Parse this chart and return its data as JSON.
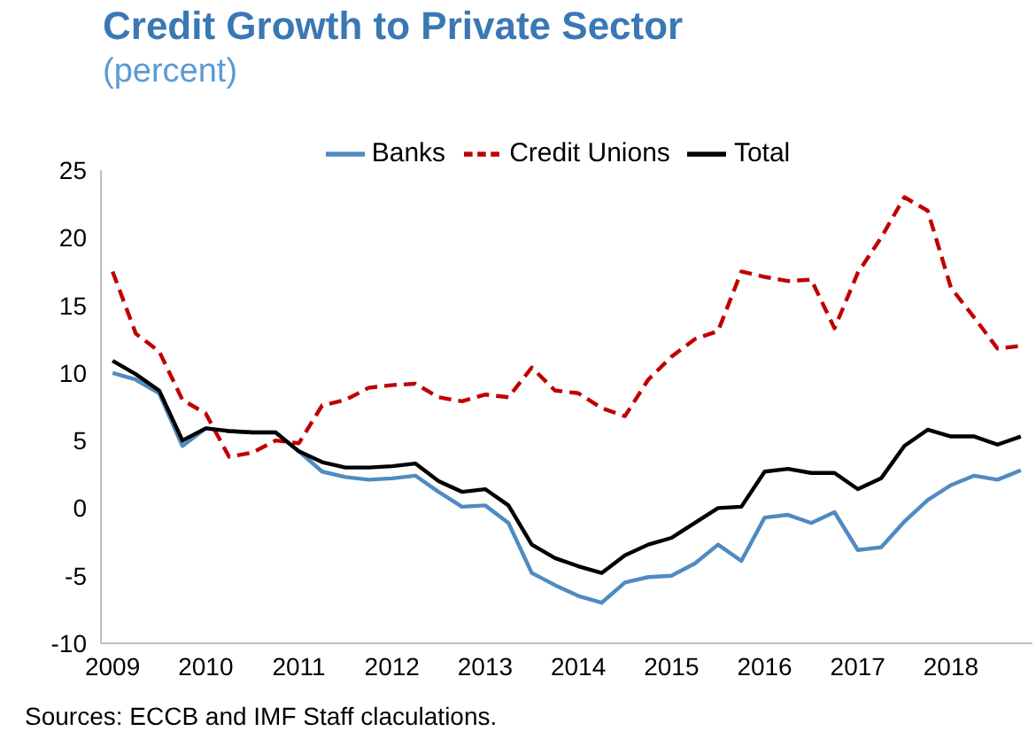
{
  "chart_data": {
    "type": "line",
    "title": "Credit Growth to Private Sector",
    "subtitle": "(percent)",
    "annotations": [
      "Sources: ECCB and IMF Staff claculations."
    ],
    "x": [
      2009,
      2009.25,
      2009.5,
      2009.75,
      2010,
      2010.25,
      2010.5,
      2010.75,
      2011,
      2011.25,
      2011.5,
      2011.75,
      2012,
      2012.25,
      2012.5,
      2012.75,
      2013,
      2013.25,
      2013.5,
      2013.75,
      2014,
      2014.25,
      2014.5,
      2014.75,
      2015,
      2015.25,
      2015.5,
      2015.75,
      2016,
      2016.25,
      2016.5,
      2016.75,
      2017,
      2017.25,
      2017.5,
      2017.75,
      2018,
      2018.25,
      2018.5,
      2018.75
    ],
    "series": [
      {
        "name": "Banks",
        "color": "#4f8bc0",
        "line_style": "solid",
        "values": [
          10.0,
          9.5,
          8.5,
          4.6,
          5.9,
          5.7,
          5.6,
          5.6,
          4.2,
          2.7,
          2.3,
          2.1,
          2.2,
          2.4,
          1.2,
          0.1,
          0.2,
          -1.1,
          -4.8,
          -5.7,
          -6.5,
          -7.0,
          -5.5,
          -5.1,
          -5.0,
          -4.1,
          -2.7,
          -3.9,
          -0.7,
          -0.5,
          -1.1,
          -0.3,
          -3.1,
          -2.9,
          -1.0,
          0.6,
          1.7,
          2.4,
          2.1,
          2.8
        ]
      },
      {
        "name": "Credit Unions",
        "color": "#c00000",
        "line_style": "dashed",
        "values": [
          17.5,
          12.9,
          11.6,
          8.0,
          7.0,
          3.8,
          4.1,
          5.0,
          4.8,
          7.6,
          8.0,
          8.9,
          9.1,
          9.2,
          8.2,
          7.9,
          8.4,
          8.2,
          10.4,
          8.7,
          8.5,
          7.4,
          6.8,
          9.5,
          11.2,
          12.5,
          13.1,
          17.5,
          17.1,
          16.8,
          16.9,
          13.3,
          17.4,
          20.0,
          23.0,
          22.0,
          16.3,
          14.1,
          11.8,
          12.0
        ]
      },
      {
        "name": "Total",
        "color": "#000000",
        "line_style": "solid",
        "values": [
          10.9,
          9.9,
          8.7,
          5.0,
          5.9,
          5.7,
          5.6,
          5.6,
          4.2,
          3.4,
          3.0,
          3.0,
          3.1,
          3.3,
          2.0,
          1.2,
          1.4,
          0.2,
          -2.7,
          -3.7,
          -4.3,
          -4.8,
          -3.5,
          -2.7,
          -2.2,
          -1.1,
          0.0,
          0.1,
          2.7,
          2.9,
          2.6,
          2.6,
          1.4,
          2.2,
          4.6,
          5.8,
          5.3,
          5.3,
          4.7,
          5.3
        ]
      }
    ],
    "xlim": [
      2008.875,
      2018.875
    ],
    "xticks": [
      2009,
      2010,
      2011,
      2012,
      2013,
      2014,
      2015,
      2016,
      2017,
      2018
    ],
    "ylim": [
      -10,
      25
    ],
    "yticks": [
      -10,
      -5,
      0,
      5,
      10,
      15,
      20,
      25
    ],
    "grid": false,
    "legend": "top",
    "marker": "none"
  }
}
